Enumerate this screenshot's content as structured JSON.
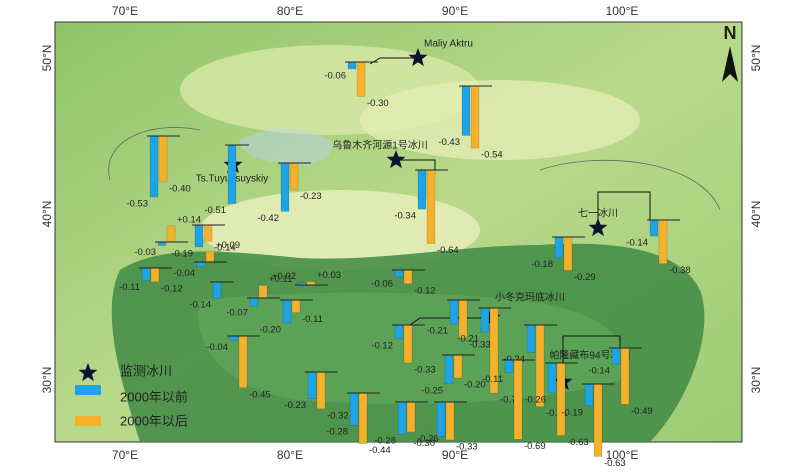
{
  "axes": {
    "lon_ticks": [
      "70°E",
      "80°E",
      "90°E",
      "100°E"
    ],
    "lat_ticks": [
      "50°N",
      "40°N",
      "30°N"
    ]
  },
  "north": "N",
  "stations": [
    {
      "label": "Maliy Aktru"
    },
    {
      "label": "Ts.Tuyuksuyskiy"
    },
    {
      "label": "乌鲁木齐河源1号冰川"
    },
    {
      "label": "七一冰川"
    },
    {
      "label": "小冬克玛底冰川"
    },
    {
      "label": "帕隆藏布94号冰川"
    }
  ],
  "legend": {
    "station": "监测冰川",
    "before": "2000年以前",
    "after": "2000年以后",
    "before_color": "#1ea3e6",
    "after_color": "#f6b12c"
  },
  "bars": [
    {
      "values": [
        -0.06,
        -0.3
      ],
      "value_labels": [
        "-0.06",
        "-0.30"
      ]
    },
    {
      "values": [
        -0.43,
        -0.54
      ],
      "value_labels": [
        "-0.43",
        "-0.54"
      ]
    },
    {
      "values": [
        -0.53,
        -0.4
      ],
      "value_labels": [
        "-0.53",
        "-0.40"
      ]
    },
    {
      "values": [
        -0.51
      ],
      "value_labels": [
        "-0.51"
      ]
    },
    {
      "values": [
        -0.42,
        -0.23
      ],
      "value_labels": [
        "-0.42",
        "-0.23"
      ]
    },
    {
      "values": [
        -0.34,
        -0.64
      ],
      "value_labels": [
        "-0.34",
        "-0.64"
      ]
    },
    {
      "values": [
        -0.03,
        0.14
      ],
      "value_labels": [
        "-0.03",
        "+0.14"
      ]
    },
    {
      "values": [
        -0.19,
        -0.14
      ],
      "value_labels": [
        "-0.19",
        "-0.14"
      ]
    },
    {
      "values": [
        -0.11,
        -0.12
      ],
      "value_labels": [
        "-0.11",
        "-0.12"
      ]
    },
    {
      "values": [
        -0.04,
        0.09
      ],
      "value_labels": [
        "-0.04",
        "+0.09"
      ]
    },
    {
      "values": [
        -0.14
      ],
      "value_labels": [
        "-0.14"
      ]
    },
    {
      "values": [
        -0.07,
        0.11
      ],
      "value_labels": [
        "-0.07",
        "+0.11"
      ]
    },
    {
      "values": [
        0.02,
        0.03
      ],
      "value_labels": [
        "+0.02",
        "+0.03"
      ]
    },
    {
      "values": [
        -0.2,
        -0.11
      ],
      "value_labels": [
        "-0.20",
        "-0.11"
      ]
    },
    {
      "values": [
        -0.06,
        -0.12
      ],
      "value_labels": [
        "-0.06",
        "-0.12"
      ]
    },
    {
      "values": [
        -0.04,
        -0.45
      ],
      "value_labels": [
        "-0.04",
        "-0.45"
      ]
    },
    {
      "values": [
        -0.12,
        -0.33
      ],
      "value_labels": [
        "-0.12",
        "-0.33"
      ]
    },
    {
      "values": [
        -0.21,
        -0.33
      ],
      "value_labels": [
        "-0.21",
        "-0.33"
      ]
    },
    {
      "values": [
        -0.21,
        -0.74
      ],
      "value_labels": [
        "-0.21",
        "-0.74"
      ]
    },
    {
      "values": [
        -0.24,
        -0.71
      ],
      "value_labels": [
        "-0.24",
        "-0.71"
      ]
    },
    {
      "values": [
        -0.25,
        -0.2
      ],
      "value_labels": [
        "-0.25",
        "-0.20"
      ]
    },
    {
      "values": [
        -0.11,
        -0.69
      ],
      "value_labels": [
        "-0.11",
        "-0.69"
      ]
    },
    {
      "values": [
        -0.26,
        -0.63
      ],
      "value_labels": [
        "-0.26",
        "-0.63"
      ]
    },
    {
      "values": [
        -0.14,
        -0.49
      ],
      "value_labels": [
        "-0.14",
        "-0.49"
      ]
    },
    {
      "values": [
        -0.19,
        -0.63
      ],
      "value_labels": [
        "-0.19",
        "-0.63"
      ]
    },
    {
      "values": [
        -0.23,
        -0.32
      ],
      "value_labels": [
        "-0.23",
        "-0.32"
      ]
    },
    {
      "values": [
        -0.28,
        -0.44
      ],
      "value_labels": [
        "-0.28",
        "-0.44"
      ]
    },
    {
      "values": [
        -0.28,
        -0.26
      ],
      "value_labels": [
        "-0.28",
        "-0.26"
      ]
    },
    {
      "values": [
        -0.3,
        -0.33
      ],
      "value_labels": [
        "-0.30",
        "-0.33"
      ]
    },
    {
      "values": [
        -0.18,
        -0.29
      ],
      "value_labels": [
        "-0.18",
        "-0.29"
      ]
    },
    {
      "values": [
        -0.14,
        -0.38
      ],
      "value_labels": [
        "-0.14",
        "-0.38"
      ]
    }
  ]
}
